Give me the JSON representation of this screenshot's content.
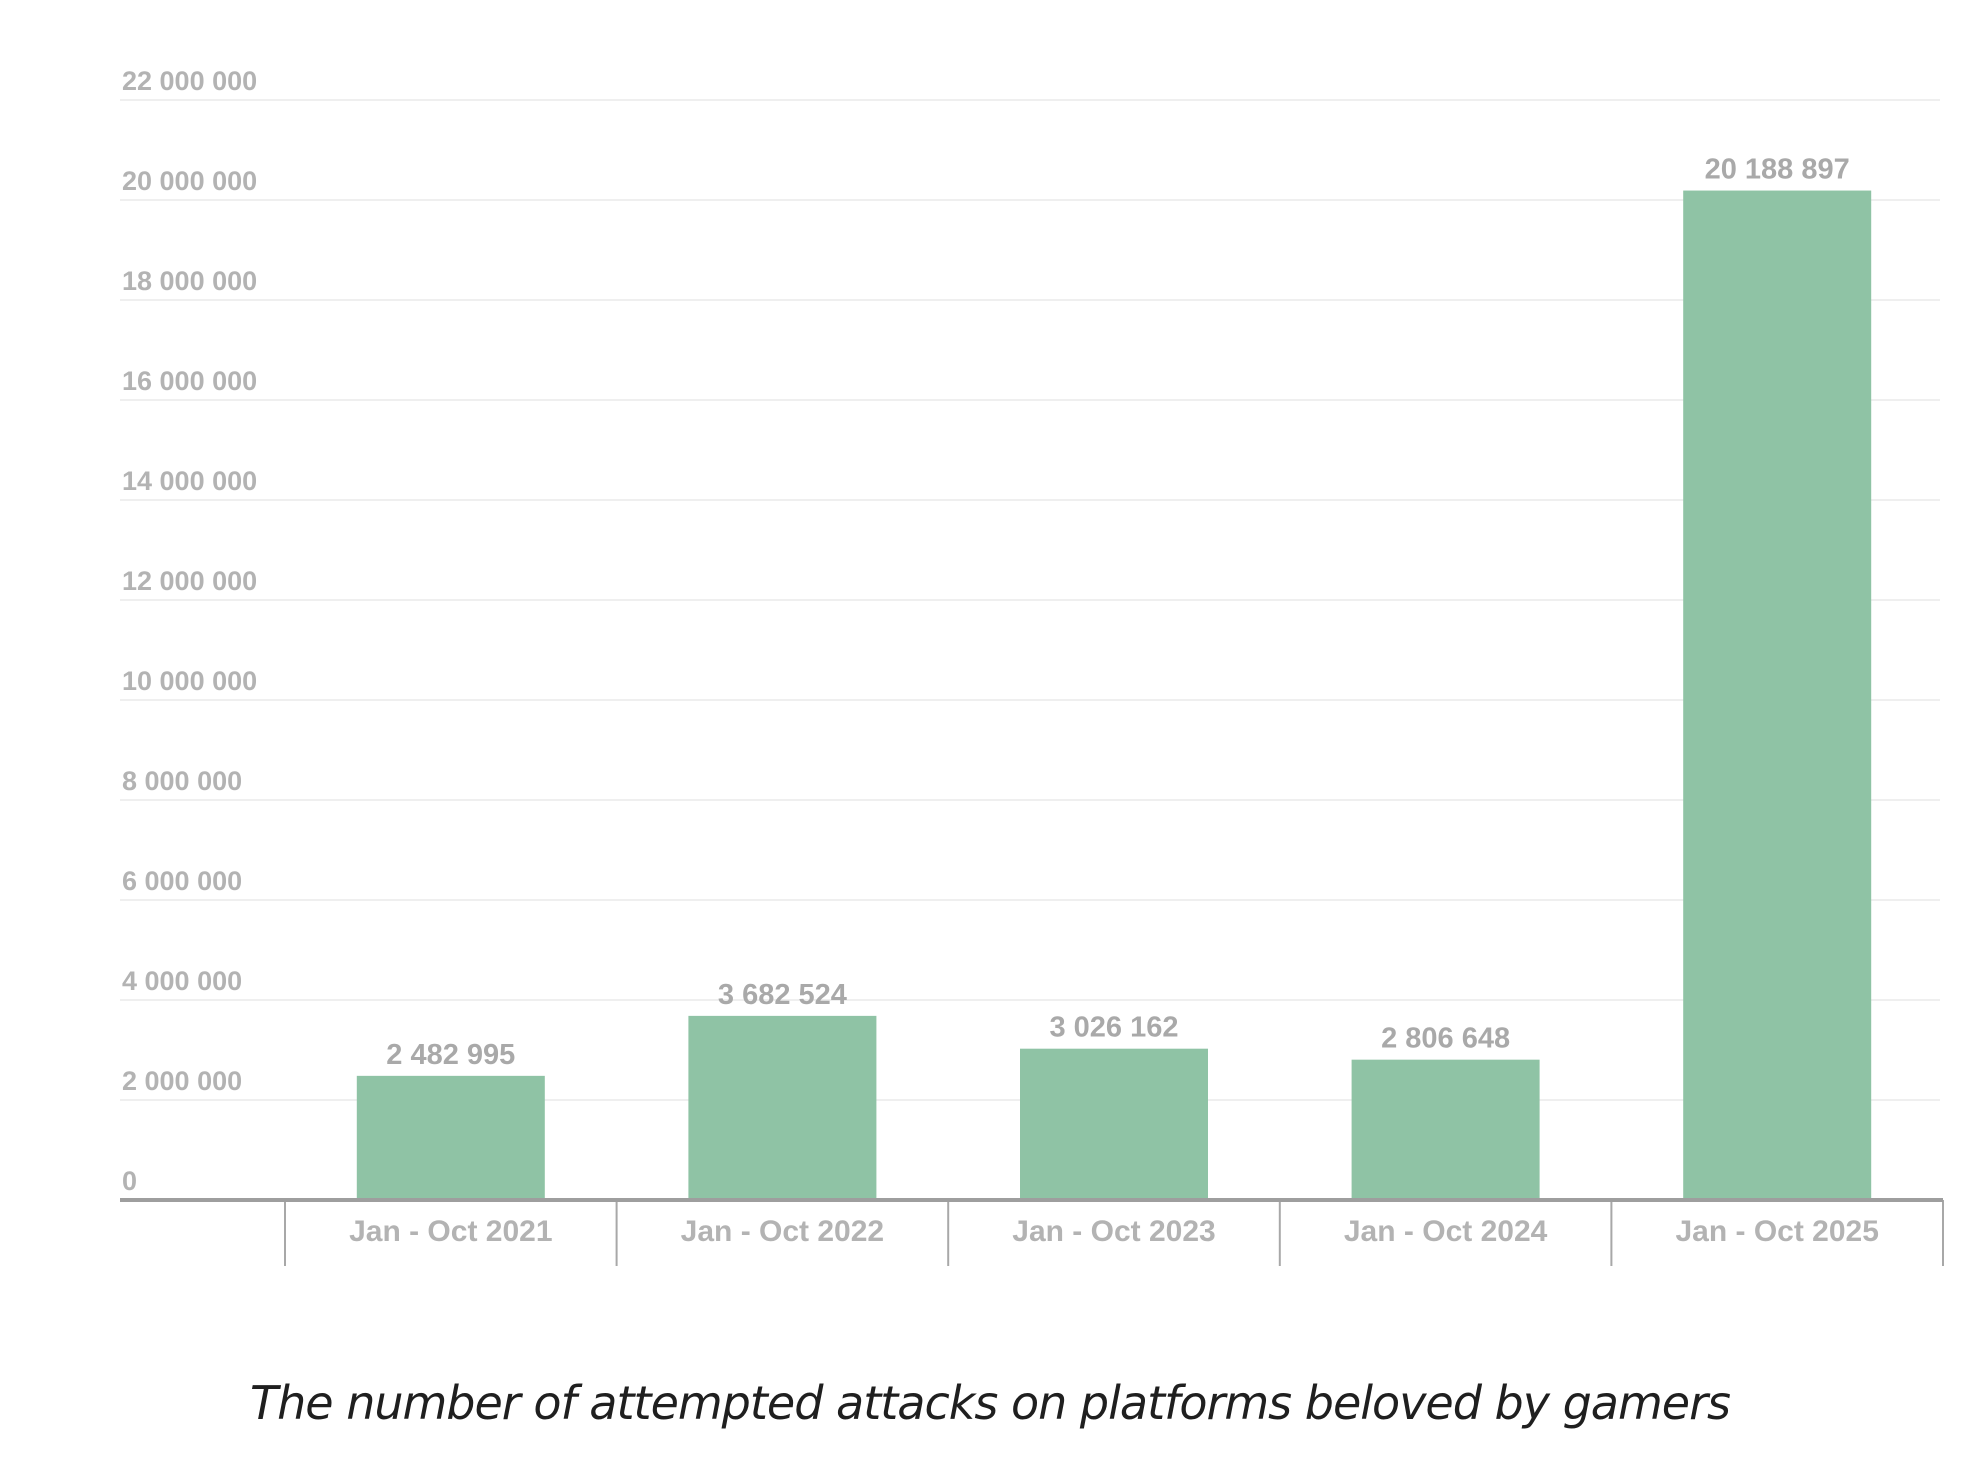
{
  "chart_data": {
    "type": "bar",
    "title": "The number of attempted attacks on platforms beloved by gamers",
    "xlabel": "",
    "ylabel": "",
    "ylim": [
      0,
      22000000
    ],
    "grid": true,
    "categories": [
      "Jan - Oct 2021",
      "Jan - Oct 2022",
      "Jan - Oct 2023",
      "Jan - Oct 2024",
      "Jan - Oct 2025"
    ],
    "values": [
      2482995,
      3682524,
      3026162,
      2806648,
      20188897
    ],
    "value_labels": [
      "2 482 995",
      "3 682 524",
      "3 026 162",
      "2 806 648",
      "20 188 897"
    ],
    "y_ticks": [
      {
        "value": 0,
        "label": "0"
      },
      {
        "value": 2000000,
        "label": "2 000 000"
      },
      {
        "value": 4000000,
        "label": "4 000 000"
      },
      {
        "value": 6000000,
        "label": "6 000 000"
      },
      {
        "value": 8000000,
        "label": "8 000 000"
      },
      {
        "value": 10000000,
        "label": "10 000 000"
      },
      {
        "value": 12000000,
        "label": "12 000 000"
      },
      {
        "value": 14000000,
        "label": "14 000 000"
      },
      {
        "value": 16000000,
        "label": "16 000 000"
      },
      {
        "value": 18000000,
        "label": "18 000 000"
      },
      {
        "value": 20000000,
        "label": "20 000 000"
      },
      {
        "value": 22000000,
        "label": "22 000 000"
      }
    ],
    "colors": {
      "bar": "#8fc3a5"
    }
  }
}
